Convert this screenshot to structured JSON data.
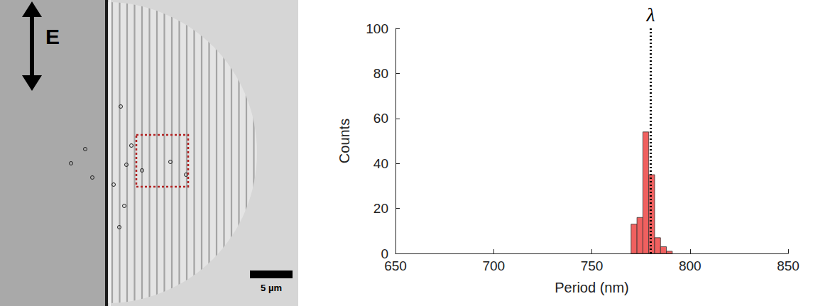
{
  "image_panel": {
    "field_label": "E",
    "scale_bar": "5 µm"
  },
  "chart_data": {
    "type": "histogram",
    "xlabel": "Period (nm)",
    "ylabel": "Counts",
    "bins": [
      770,
      773,
      776,
      779,
      782,
      785,
      788,
      791
    ],
    "counts": [
      13,
      16,
      54,
      35,
      7,
      3,
      1
    ],
    "color": "#f0605f",
    "xlim": [
      650,
      850
    ],
    "xticks": [
      650,
      700,
      750,
      800,
      850
    ],
    "ylim": [
      0,
      100
    ],
    "yticks": [
      0,
      20,
      40,
      60,
      80,
      100
    ],
    "annotations": [
      {
        "x": 780,
        "text": "λ"
      }
    ],
    "grid": false
  }
}
